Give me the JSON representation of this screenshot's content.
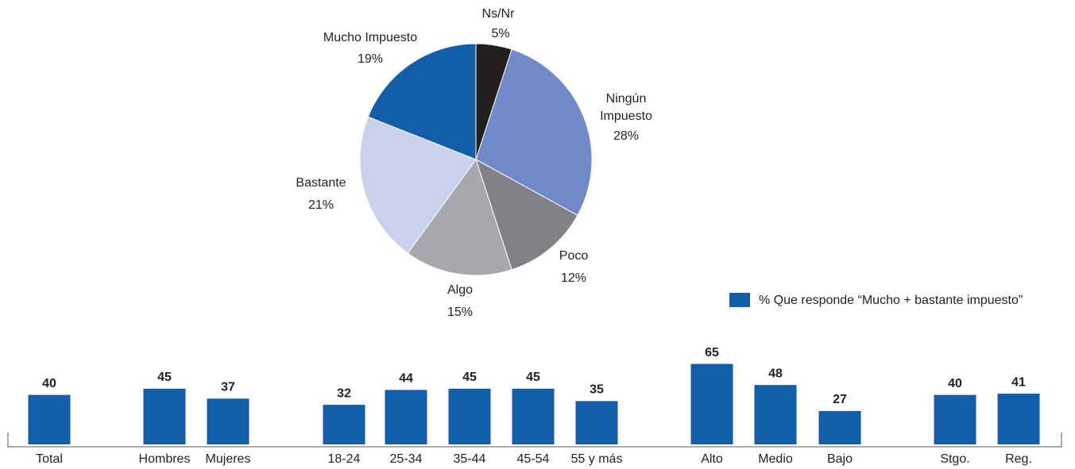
{
  "chart_data": [
    {
      "type": "pie",
      "categories": [
        "Ns/Nr",
        "Ningún Impuesto",
        "Poco",
        "Algo",
        "Bastante",
        "Mucho Impuesto"
      ],
      "values": [
        5,
        28,
        12,
        15,
        21,
        19
      ],
      "value_labels": [
        "5%",
        "28%",
        "12%",
        "15%",
        "21%",
        "19%"
      ],
      "colors": [
        "#231f20",
        "#7089c8",
        "#808285",
        "#a7a9ac",
        "#c9d1ec",
        "#135eab"
      ]
    },
    {
      "type": "bar",
      "categories": [
        "Total",
        "Hombres",
        "Mujeres",
        "18-24",
        "25-34",
        "35-44",
        "45-54",
        "55 y más",
        "Alto",
        "Medio",
        "Bajo",
        "Stgo.",
        "Reg."
      ],
      "series": [
        {
          "name": "% Que responde “Mucho + bastante impuesto”",
          "color": "#135eab",
          "values": [
            40,
            45,
            37,
            32,
            44,
            45,
            45,
            35,
            65,
            48,
            27,
            40,
            41
          ]
        }
      ],
      "ylim": [
        0,
        100
      ],
      "legend": "right"
    }
  ]
}
